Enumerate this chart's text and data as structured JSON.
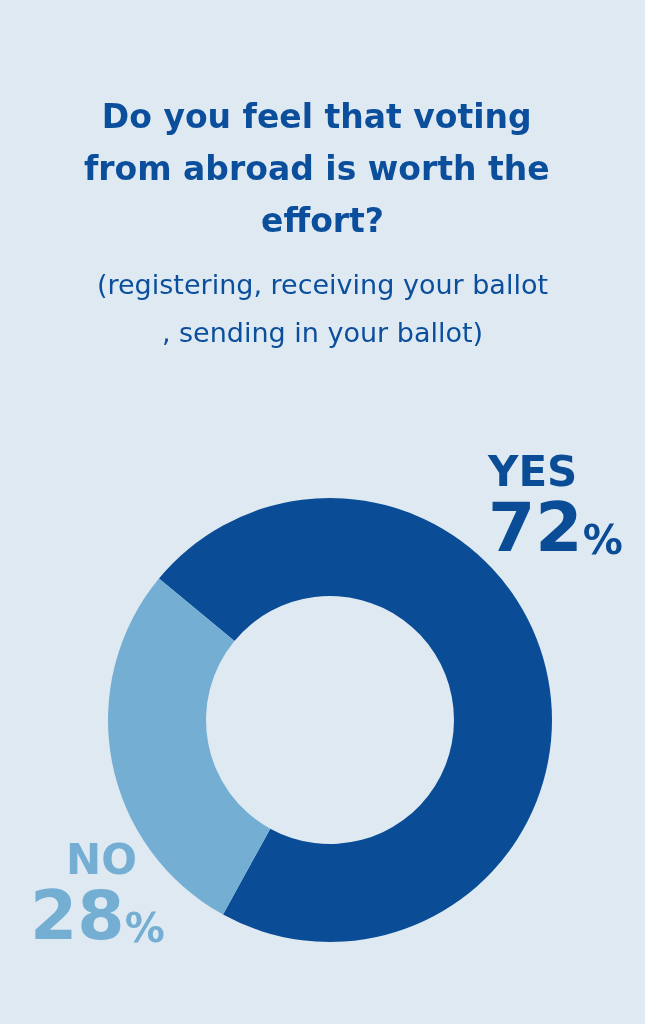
{
  "chart_data": {
    "type": "donut",
    "title": "Do you feel that voting from abroad is worth the effort?",
    "subtitle": "(registering, receiving your ballot, sending in your ballot)",
    "categories": [
      "YES",
      "NO"
    ],
    "values": [
      72,
      28
    ],
    "colors": [
      "#0a4d96",
      "#74afd3"
    ],
    "value_labels": [
      "72%",
      "28%"
    ],
    "legend": false
  }
}
